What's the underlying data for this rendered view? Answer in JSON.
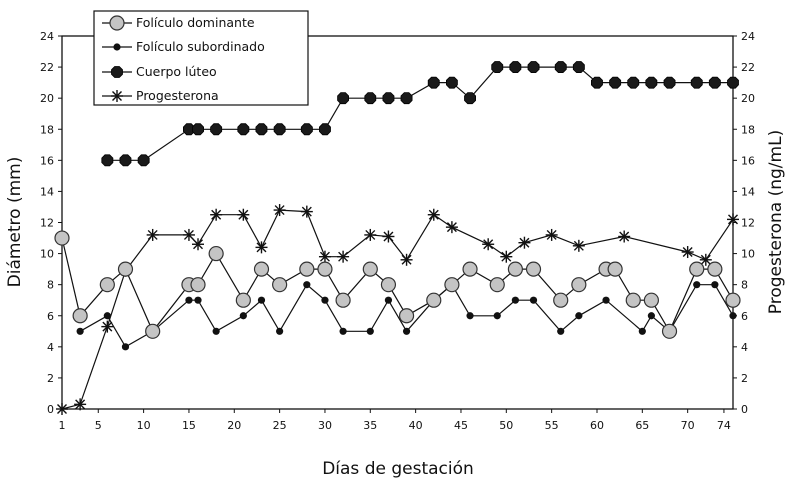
{
  "chart_data": {
    "type": "line",
    "xlabel": "Días de gestación",
    "ylabel": "Diámetro (mm)",
    "y2label": "Progesterona (ng/mL)",
    "xlim": [
      0,
      75
    ],
    "ylim": [
      0,
      24
    ],
    "y2lim": [
      0,
      24
    ],
    "x_ticks": [
      "1",
      "5",
      "10",
      "15",
      "20",
      "25",
      "30",
      "35",
      "40",
      "45",
      "50",
      "55",
      "60",
      "65",
      "70",
      "74"
    ],
    "y_ticks": [
      "0",
      "2",
      "4",
      "6",
      "8",
      "10",
      "12",
      "14",
      "16",
      "18",
      "20",
      "22",
      "24"
    ],
    "y2_ticks": [
      "0",
      "2",
      "4",
      "6",
      "8",
      "10",
      "12",
      "14",
      "16",
      "18",
      "20",
      "22",
      "24"
    ],
    "x_tick_values": [
      1,
      5,
      10,
      15,
      20,
      25,
      30,
      35,
      40,
      45,
      50,
      55,
      60,
      65,
      70,
      74
    ],
    "legend_position": "top-left",
    "series": [
      {
        "name": "Folículo dominante",
        "marker": "circle",
        "color": "#c8c8c8",
        "x": [
          1,
          3,
          6,
          8,
          11,
          15,
          16,
          18,
          21,
          23,
          25,
          28,
          30,
          32,
          35,
          37,
          39,
          42,
          44,
          46,
          49,
          51,
          53,
          56,
          58,
          61,
          62,
          64,
          66,
          68,
          71,
          73,
          75
        ],
        "y": [
          11,
          6,
          8,
          9,
          5,
          8,
          8,
          10,
          7,
          9,
          8,
          9,
          9,
          7,
          9,
          8,
          6,
          7,
          8,
          9,
          8,
          9,
          9,
          7,
          8,
          9,
          9,
          7,
          7,
          5,
          9,
          9,
          7
        ]
      },
      {
        "name": "Folículo subordinado",
        "marker": "small-dot",
        "color": "#111111",
        "x": [
          3,
          6,
          8,
          11,
          15,
          16,
          18,
          21,
          23,
          25,
          28,
          30,
          32,
          35,
          37,
          39,
          42,
          44,
          46,
          49,
          51,
          53,
          56,
          58,
          61,
          65,
          66,
          68,
          71,
          73,
          75
        ],
        "y": [
          5,
          6,
          4,
          5,
          7,
          7,
          5,
          6,
          7,
          5,
          8,
          7,
          5,
          5,
          7,
          5,
          7,
          8,
          6,
          6,
          7,
          7,
          5,
          6,
          7,
          5,
          6,
          5,
          8,
          8,
          6
        ]
      },
      {
        "name": "Cuerpo lúteo",
        "marker": "octagon",
        "color": "#111111",
        "x": [
          6,
          8,
          10,
          15,
          16,
          18,
          21,
          23,
          25,
          28,
          30,
          32,
          35,
          37,
          39,
          42,
          44,
          46,
          49,
          51,
          53,
          56,
          58,
          60,
          62,
          64,
          66,
          68,
          71,
          73,
          75
        ],
        "y": [
          16,
          16,
          16,
          18,
          18,
          18,
          18,
          18,
          18,
          18,
          18,
          20,
          20,
          20,
          20,
          21,
          21,
          20,
          22,
          22,
          22,
          22,
          22,
          21,
          21,
          21,
          21,
          21,
          21,
          21,
          21
        ]
      },
      {
        "name": "Progesterona",
        "marker": "asterisk",
        "color": "#111111",
        "x": [
          1,
          3,
          6,
          8,
          11,
          15,
          16,
          18,
          21,
          23,
          25,
          28,
          30,
          32,
          35,
          37,
          39,
          42,
          44,
          48,
          50,
          52,
          55,
          58,
          63,
          70,
          72,
          75
        ],
        "y": [
          0,
          0.3,
          5.3,
          8.9,
          11.2,
          11.2,
          10.6,
          12.5,
          12.5,
          10.4,
          12.8,
          12.7,
          9.8,
          9.8,
          11.2,
          11.1,
          9.6,
          12.5,
          11.7,
          10.6,
          9.8,
          10.7,
          11.2,
          10.5,
          11.1,
          10.1,
          9.6,
          12.2
        ]
      }
    ]
  }
}
